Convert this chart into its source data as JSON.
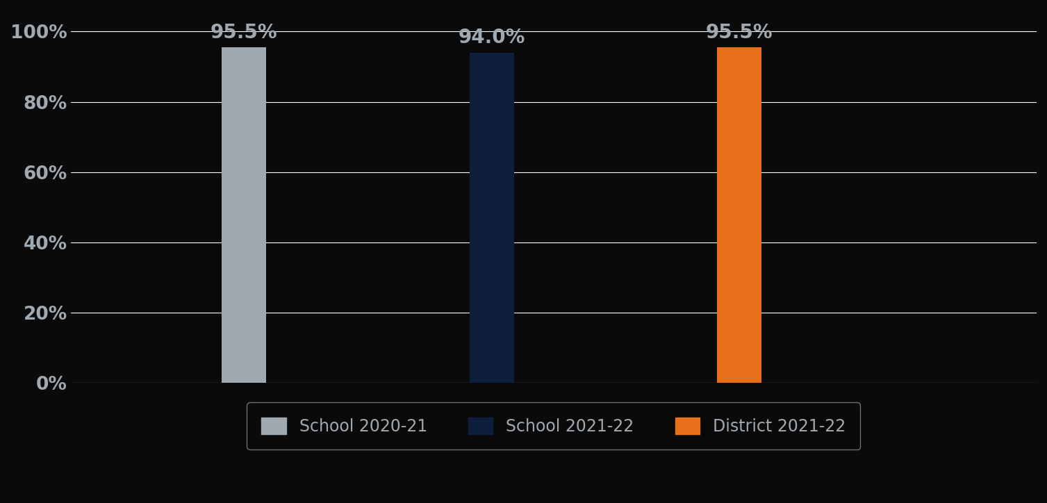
{
  "categories": [
    "School 2020-21",
    "School 2021-22",
    "District 2021-22"
  ],
  "values": [
    95.5,
    94.0,
    95.5
  ],
  "bar_colors": [
    "#a0a8b0",
    "#0d1f3c",
    "#e8701a"
  ],
  "labels": [
    "95.5%",
    "94.0%",
    "95.5%"
  ],
  "ylim": [
    0,
    106
  ],
  "yticks": [
    0,
    20,
    40,
    60,
    80,
    100
  ],
  "ytick_labels": [
    "0%",
    "20%",
    "40%",
    "60%",
    "80%",
    "100%"
  ],
  "background_color": "#0a0a0a",
  "text_color": "#a0a8b0",
  "grid_color": "#ffffff",
  "label_fontsize": 20,
  "tick_fontsize": 19,
  "legend_fontsize": 17,
  "bar_width": 0.18,
  "bar_positions": [
    1,
    2,
    3
  ],
  "xlim": [
    0.3,
    4.2
  ]
}
